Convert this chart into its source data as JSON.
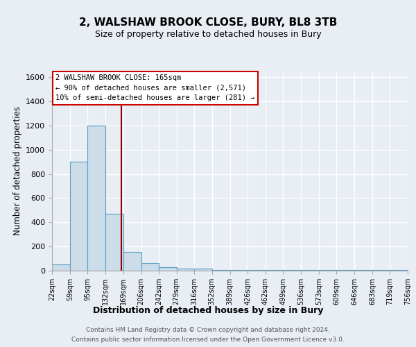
{
  "title": "2, WALSHAW BROOK CLOSE, BURY, BL8 3TB",
  "subtitle": "Size of property relative to detached houses in Bury",
  "xlabel": "Distribution of detached houses by size in Bury",
  "ylabel": "Number of detached properties",
  "bar_edges": [
    22,
    59,
    95,
    132,
    169,
    206,
    242,
    279,
    316,
    352,
    389,
    426,
    462,
    499,
    536,
    573,
    609,
    646,
    683,
    719,
    756
  ],
  "bar_heights": [
    50,
    900,
    1200,
    470,
    155,
    65,
    30,
    15,
    20,
    5,
    5,
    5,
    5,
    5,
    5,
    5,
    5,
    5,
    5,
    5
  ],
  "tick_labels": [
    "22sqm",
    "59sqm",
    "95sqm",
    "132sqm",
    "169sqm",
    "206sqm",
    "242sqm",
    "279sqm",
    "316sqm",
    "352sqm",
    "389sqm",
    "426sqm",
    "462sqm",
    "499sqm",
    "536sqm",
    "573sqm",
    "609sqm",
    "646sqm",
    "683sqm",
    "719sqm",
    "756sqm"
  ],
  "bar_color": "#ccdce8",
  "bar_edge_color": "#5a9fc8",
  "vline_x": 165,
  "vline_color": "#990000",
  "annotation_lines": [
    "2 WALSHAW BROOK CLOSE: 165sqm",
    "← 90% of detached houses are smaller (2,571)",
    "10% of semi-detached houses are larger (281) →"
  ],
  "ylim": [
    0,
    1650
  ],
  "yticks": [
    0,
    200,
    400,
    600,
    800,
    1000,
    1200,
    1400,
    1600
  ],
  "footer_line1": "Contains HM Land Registry data © Crown copyright and database right 2024.",
  "footer_line2": "Contains public sector information licensed under the Open Government Licence v3.0.",
  "bg_color": "#e8eef4",
  "plot_bg_color": "#e8eef4",
  "title_fontsize": 11,
  "subtitle_fontsize": 9,
  "ylabel_fontsize": 8.5,
  "xlabel_fontsize": 9,
  "tick_fontsize": 7,
  "ytick_fontsize": 8,
  "ann_fontsize": 7.5
}
